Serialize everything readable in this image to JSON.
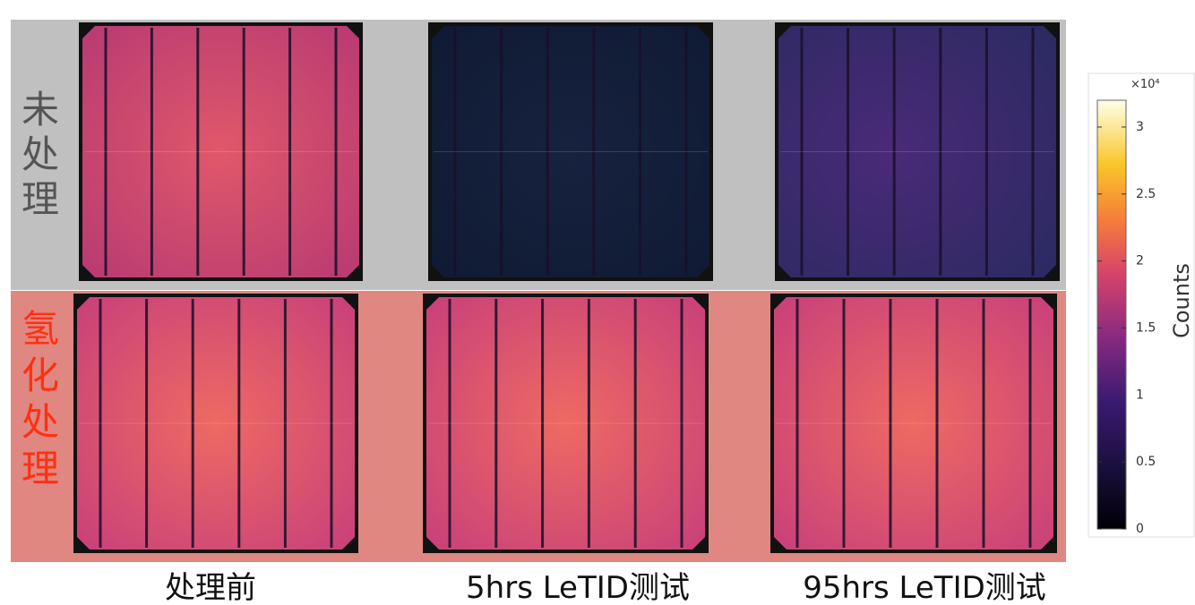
{
  "row_labels": [
    "未处理",
    "氢化处理"
  ],
  "column_labels": [
    "处理前",
    "5hrs LeTID测试",
    "95hrs LeTID测试"
  ],
  "colorbar": {
    "label": "Counts",
    "multiplier": "×10⁴",
    "ylim": [
      0,
      3.2
    ],
    "ticks": [
      0,
      0.5,
      1,
      1.5,
      2,
      2.5,
      3
    ]
  }
}
